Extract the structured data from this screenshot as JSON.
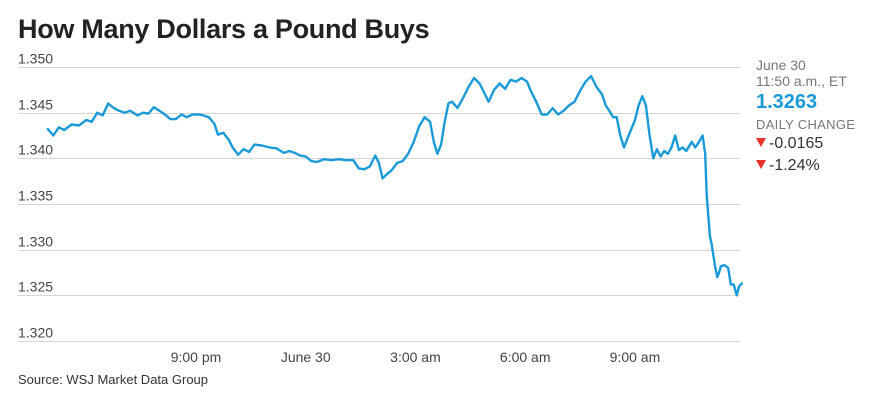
{
  "chart_data": {
    "type": "line",
    "title": "How Many Dollars a Pound Buys",
    "xlabel": "",
    "ylabel": "",
    "ylim": [
      1.32,
      1.35
    ],
    "yticks": [
      "1.350",
      "1.345",
      "1.340",
      "1.335",
      "1.330",
      "1.325",
      "1.320"
    ],
    "ytick_values": [
      1.35,
      1.345,
      1.34,
      1.335,
      1.33,
      1.325,
      1.32
    ],
    "x_unit": "hours since 9:00 pm",
    "xlim": [
      -4.1,
      14.3
    ],
    "xticks": [
      {
        "label": "9:00 pm",
        "x": 0
      },
      {
        "label": "June 30",
        "x": 3
      },
      {
        "label": "3:00 am",
        "x": 6
      },
      {
        "label": "6:00 am",
        "x": 9
      },
      {
        "label": "9:00 am",
        "x": 12
      }
    ],
    "grid": true,
    "legend": "none",
    "series": [
      {
        "name": "",
        "points": [
          [
            -4.05,
            1.3432
          ],
          [
            -3.9,
            1.3425
          ],
          [
            -3.75,
            1.3434
          ],
          [
            -3.6,
            1.3431
          ],
          [
            -3.4,
            1.3437
          ],
          [
            -3.2,
            1.3436
          ],
          [
            -3.0,
            1.3442
          ],
          [
            -2.85,
            1.344
          ],
          [
            -2.7,
            1.345
          ],
          [
            -2.55,
            1.3447
          ],
          [
            -2.4,
            1.346
          ],
          [
            -2.25,
            1.3455
          ],
          [
            -2.1,
            1.3452
          ],
          [
            -1.95,
            1.345
          ],
          [
            -1.8,
            1.3452
          ],
          [
            -1.6,
            1.3447
          ],
          [
            -1.45,
            1.345
          ],
          [
            -1.3,
            1.3449
          ],
          [
            -1.15,
            1.3456
          ],
          [
            -1.0,
            1.3452
          ],
          [
            -0.85,
            1.3448
          ],
          [
            -0.7,
            1.3443
          ],
          [
            -0.55,
            1.3443
          ],
          [
            -0.4,
            1.3448
          ],
          [
            -0.25,
            1.3445
          ],
          [
            -0.1,
            1.3448
          ],
          [
            0.1,
            1.3448
          ],
          [
            0.2,
            1.3447
          ],
          [
            0.35,
            1.3445
          ],
          [
            0.5,
            1.3438
          ],
          [
            0.6,
            1.3426
          ],
          [
            0.75,
            1.3428
          ],
          [
            0.9,
            1.342
          ],
          [
            1.0,
            1.3412
          ],
          [
            1.15,
            1.3404
          ],
          [
            1.3,
            1.341
          ],
          [
            1.45,
            1.3407
          ],
          [
            1.6,
            1.3415
          ],
          [
            1.8,
            1.3414
          ],
          [
            2.0,
            1.3412
          ],
          [
            2.2,
            1.3411
          ],
          [
            2.4,
            1.3406
          ],
          [
            2.55,
            1.3408
          ],
          [
            2.7,
            1.3406
          ],
          [
            2.85,
            1.3403
          ],
          [
            3.0,
            1.3402
          ],
          [
            3.15,
            1.3397
          ],
          [
            3.3,
            1.3396
          ],
          [
            3.5,
            1.3399
          ],
          [
            3.7,
            1.3398
          ],
          [
            3.9,
            1.3399
          ],
          [
            4.1,
            1.3398
          ],
          [
            4.3,
            1.3398
          ],
          [
            4.45,
            1.3389
          ],
          [
            4.6,
            1.3388
          ],
          [
            4.75,
            1.3391
          ],
          [
            4.9,
            1.3403
          ],
          [
            5.0,
            1.3395
          ],
          [
            5.1,
            1.3378
          ],
          [
            5.2,
            1.3382
          ],
          [
            5.35,
            1.3387
          ],
          [
            5.5,
            1.3395
          ],
          [
            5.65,
            1.3397
          ],
          [
            5.8,
            1.3405
          ],
          [
            5.95,
            1.3418
          ],
          [
            6.1,
            1.3435
          ],
          [
            6.25,
            1.3445
          ],
          [
            6.4,
            1.344
          ],
          [
            6.5,
            1.3418
          ],
          [
            6.6,
            1.3405
          ],
          [
            6.7,
            1.3415
          ],
          [
            6.8,
            1.344
          ],
          [
            6.9,
            1.346
          ],
          [
            7.0,
            1.3462
          ],
          [
            7.15,
            1.3455
          ],
          [
            7.3,
            1.3466
          ],
          [
            7.45,
            1.3478
          ],
          [
            7.6,
            1.3488
          ],
          [
            7.75,
            1.3482
          ],
          [
            7.9,
            1.347
          ],
          [
            8.0,
            1.3462
          ],
          [
            8.15,
            1.3475
          ],
          [
            8.3,
            1.3482
          ],
          [
            8.45,
            1.3476
          ],
          [
            8.6,
            1.3486
          ],
          [
            8.75,
            1.3484
          ],
          [
            8.9,
            1.3488
          ],
          [
            9.05,
            1.3484
          ],
          [
            9.15,
            1.3474
          ],
          [
            9.3,
            1.3462
          ],
          [
            9.45,
            1.3448
          ],
          [
            9.6,
            1.3448
          ],
          [
            9.75,
            1.3455
          ],
          [
            9.9,
            1.3448
          ],
          [
            10.05,
            1.3452
          ],
          [
            10.2,
            1.3458
          ],
          [
            10.35,
            1.3462
          ],
          [
            10.5,
            1.3474
          ],
          [
            10.65,
            1.3484
          ],
          [
            10.8,
            1.349
          ],
          [
            10.95,
            1.3478
          ],
          [
            11.1,
            1.347
          ],
          [
            11.2,
            1.3458
          ],
          [
            11.3,
            1.3452
          ],
          [
            11.4,
            1.3445
          ],
          [
            11.5,
            1.3445
          ],
          [
            11.6,
            1.3425
          ],
          [
            11.7,
            1.3412
          ],
          [
            11.8,
            1.3422
          ],
          [
            11.9,
            1.3432
          ],
          [
            12.0,
            1.3442
          ],
          [
            12.1,
            1.3458
          ],
          [
            12.2,
            1.3468
          ],
          [
            12.3,
            1.3458
          ],
          [
            12.4,
            1.3425
          ],
          [
            12.5,
            1.34
          ],
          [
            12.6,
            1.341
          ],
          [
            12.7,
            1.3402
          ],
          [
            12.8,
            1.3408
          ],
          [
            12.9,
            1.3405
          ],
          [
            13.0,
            1.3412
          ],
          [
            13.1,
            1.3425
          ],
          [
            13.2,
            1.3409
          ],
          [
            13.3,
            1.3412
          ],
          [
            13.4,
            1.3408
          ],
          [
            13.55,
            1.3418
          ],
          [
            13.65,
            1.3412
          ],
          [
            13.75,
            1.3418
          ],
          [
            13.85,
            1.3425
          ],
          [
            13.92,
            1.3405
          ],
          [
            13.96,
            1.336
          ],
          [
            14.0,
            1.334
          ],
          [
            14.05,
            1.3315
          ],
          [
            14.1,
            1.3305
          ],
          [
            14.15,
            1.3292
          ],
          [
            14.2,
            1.328
          ],
          [
            14.25,
            1.327
          ],
          [
            14.3,
            1.3275
          ],
          [
            14.35,
            1.3282
          ],
          [
            14.45,
            1.3283
          ],
          [
            14.55,
            1.328
          ],
          [
            14.62,
            1.3262
          ],
          [
            14.7,
            1.3262
          ],
          [
            14.78,
            1.325
          ],
          [
            14.85,
            1.326
          ],
          [
            14.92,
            1.3263
          ]
        ]
      }
    ]
  },
  "quote": {
    "date": "June 30",
    "time": "11:50 a.m., ET",
    "price": "1.3263",
    "daily_change_label": "DAILY CHANGE",
    "change": "-0.0165",
    "change_pct": "-1.24%",
    "price_color": "#1a9ad6",
    "down_color": "#e8332a"
  },
  "source": "Source: WSJ Market Data Group"
}
